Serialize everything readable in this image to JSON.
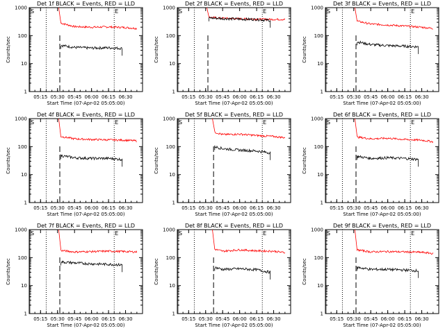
{
  "chart_data": [
    {
      "type": "line",
      "title": "Det 1f BLACK = Events, RED = LLD",
      "xlabel": "Start Time (07-Apr-02 05:05:00)",
      "ylabel": "Counts/sec",
      "yscale": "log",
      "ylim": [
        1,
        1000
      ],
      "xlim": [
        "05:05",
        "06:45"
      ],
      "x_ticks": [
        "05:15",
        "05:30",
        "05:45",
        "06:00",
        "06:15",
        "06:30"
      ],
      "y_ticks": [
        "1",
        "10",
        "100",
        "1000"
      ],
      "grid": false,
      "markers": [
        "S",
        "E"
      ],
      "series": [
        {
          "color": "#ff0000",
          "x": [
            "05:33",
            "05:45",
            "06:00",
            "06:15",
            "06:30",
            "06:40"
          ],
          "values": [
            280,
            210,
            200,
            205,
            195,
            180
          ]
        },
        {
          "color": "#000000",
          "x": [
            "05:33",
            "05:45",
            "06:00",
            "06:15",
            "06:27"
          ],
          "values": [
            45,
            38,
            36,
            37,
            35
          ]
        }
      ]
    },
    {
      "type": "line",
      "title": "Det 2f BLACK = Events, RED = LLD",
      "xlabel": "Start Time (07-Apr-02 05:05:00)",
      "ylabel": "Counts/sec",
      "yscale": "log",
      "ylim": [
        1,
        1000
      ],
      "xlim": [
        "05:05",
        "06:45"
      ],
      "x_ticks": [
        "05:15",
        "05:30",
        "05:45",
        "06:00",
        "06:15",
        "06:30"
      ],
      "y_ticks": [
        "1",
        "10",
        "100",
        "1000"
      ],
      "grid": false,
      "markers": [
        "S",
        "E"
      ],
      "series": [
        {
          "color": "#ff0000",
          "x": [
            "05:33",
            "05:45",
            "06:00",
            "06:15",
            "06:30",
            "06:40"
          ],
          "values": [
            450,
            420,
            400,
            390,
            380,
            380
          ]
        },
        {
          "color": "#000000",
          "x": [
            "05:33",
            "05:45",
            "06:00",
            "06:15",
            "06:27"
          ],
          "values": [
            430,
            410,
            390,
            380,
            350
          ]
        }
      ]
    },
    {
      "type": "line",
      "title": "Det 3f BLACK = Events, RED = LLD",
      "xlabel": "Start Time (07-Apr-02 05:05:00)",
      "ylabel": "Counts/sec",
      "yscale": "log",
      "ylim": [
        1,
        1000
      ],
      "xlim": [
        "05:05",
        "06:45"
      ],
      "x_ticks": [
        "05:15",
        "05:30",
        "05:45",
        "06:00",
        "06:15",
        "06:30"
      ],
      "y_ticks": [
        "1",
        "10",
        "100",
        "1000"
      ],
      "grid": false,
      "markers": [
        "S",
        "E"
      ],
      "series": [
        {
          "color": "#ff0000",
          "x": [
            "05:33",
            "05:45",
            "06:00",
            "06:15",
            "06:30",
            "06:40"
          ],
          "values": [
            330,
            260,
            240,
            220,
            200,
            180
          ]
        },
        {
          "color": "#000000",
          "x": [
            "05:33",
            "05:45",
            "06:00",
            "06:15",
            "06:27"
          ],
          "values": [
            60,
            48,
            44,
            42,
            40
          ]
        }
      ]
    },
    {
      "type": "line",
      "title": "Det 4f BLACK = Events, RED = LLD",
      "xlabel": "Start Time (07-Apr-02 05:05:00)",
      "ylabel": "Counts/sec",
      "yscale": "log",
      "ylim": [
        1,
        1000
      ],
      "xlim": [
        "05:05",
        "06:45"
      ],
      "x_ticks": [
        "05:15",
        "05:30",
        "05:45",
        "06:00",
        "06:15",
        "06:30"
      ],
      "y_ticks": [
        "1",
        "10",
        "100",
        "1000"
      ],
      "grid": false,
      "markers": [
        "S",
        "E"
      ],
      "series": [
        {
          "color": "#ff0000",
          "x": [
            "05:33",
            "05:45",
            "06:00",
            "06:15",
            "06:30",
            "06:40"
          ],
          "values": [
            230,
            190,
            180,
            175,
            170,
            160
          ]
        },
        {
          "color": "#000000",
          "x": [
            "05:33",
            "05:45",
            "06:00",
            "06:15",
            "06:27"
          ],
          "values": [
            48,
            40,
            38,
            38,
            35
          ]
        }
      ]
    },
    {
      "type": "line",
      "title": "Det 5f BLACK = Events, RED = LLD",
      "xlabel": "Start Time (07-Apr-02 05:05:00)",
      "ylabel": "Counts/sec",
      "yscale": "log",
      "ylim": [
        1,
        1000
      ],
      "xlim": [
        "05:05",
        "06:45"
      ],
      "x_ticks": [
        "05:15",
        "05:30",
        "05:45",
        "06:00",
        "06:15",
        "06:30"
      ],
      "y_ticks": [
        "1",
        "10",
        "100",
        "1000"
      ],
      "grid": false,
      "markers": [
        "S",
        "E"
      ],
      "series": [
        {
          "color": "#ff0000",
          "x": [
            "05:38",
            "05:45",
            "06:00",
            "06:15",
            "06:30",
            "06:40"
          ],
          "values": [
            330,
            270,
            280,
            250,
            230,
            210
          ]
        },
        {
          "color": "#000000",
          "x": [
            "05:38",
            "05:45",
            "06:00",
            "06:15",
            "06:27"
          ],
          "values": [
            100,
            85,
            75,
            70,
            60
          ]
        }
      ]
    },
    {
      "type": "line",
      "title": "Det 6f BLACK = Events, RED = LLD",
      "xlabel": "Start Time (07-Apr-02 05:05:00)",
      "ylabel": "Counts/sec",
      "yscale": "log",
      "ylim": [
        1,
        1000
      ],
      "xlim": [
        "05:05",
        "06:45"
      ],
      "x_ticks": [
        "05:15",
        "05:30",
        "05:45",
        "06:00",
        "06:15",
        "06:30"
      ],
      "y_ticks": [
        "1",
        "10",
        "100",
        "1000"
      ],
      "grid": false,
      "markers": [
        "S",
        "E"
      ],
      "series": [
        {
          "color": "#ff0000",
          "x": [
            "05:33",
            "05:45",
            "06:00",
            "06:15",
            "06:30",
            "06:40"
          ],
          "values": [
            220,
            190,
            200,
            180,
            170,
            150
          ]
        },
        {
          "color": "#000000",
          "x": [
            "05:33",
            "05:45",
            "06:00",
            "06:15",
            "06:27"
          ],
          "values": [
            45,
            38,
            40,
            38,
            35
          ]
        }
      ]
    },
    {
      "type": "line",
      "title": "Det 7f BLACK = Events, RED = LLD",
      "xlabel": "Start Time (07-Apr-02 05:05:00)",
      "ylabel": "Counts/sec",
      "yscale": "log",
      "ylim": [
        1,
        1000
      ],
      "xlim": [
        "05:05",
        "06:45"
      ],
      "x_ticks": [
        "05:15",
        "05:30",
        "05:45",
        "06:00",
        "06:15",
        "06:30"
      ],
      "y_ticks": [
        "1",
        "10",
        "100",
        "1000"
      ],
      "grid": false,
      "markers": [
        "S",
        "E"
      ],
      "series": [
        {
          "color": "#ff0000",
          "x": [
            "05:33",
            "05:45",
            "06:00",
            "06:15",
            "06:30",
            "06:40"
          ],
          "values": [
            180,
            160,
            165,
            170,
            165,
            160
          ]
        },
        {
          "color": "#000000",
          "x": [
            "05:33",
            "05:45",
            "06:00",
            "06:15",
            "06:27"
          ],
          "values": [
            70,
            65,
            60,
            58,
            55
          ]
        }
      ]
    },
    {
      "type": "line",
      "title": "Det 8f BLACK = Events, RED = LLD",
      "xlabel": "Start Time (07-Apr-02 05:05:00)",
      "ylabel": "Counts/sec",
      "yscale": "log",
      "ylim": [
        1,
        1000
      ],
      "xlim": [
        "05:05",
        "06:45"
      ],
      "x_ticks": [
        "05:15",
        "05:30",
        "05:45",
        "06:00",
        "06:15",
        "06:30"
      ],
      "y_ticks": [
        "1",
        "10",
        "100",
        "1000"
      ],
      "grid": false,
      "markers": [
        "S",
        "E"
      ],
      "series": [
        {
          "color": "#ff0000",
          "x": [
            "05:38",
            "05:45",
            "06:00",
            "06:15",
            "06:30",
            "06:40"
          ],
          "values": [
            200,
            170,
            190,
            175,
            170,
            150
          ]
        },
        {
          "color": "#000000",
          "x": [
            "05:38",
            "05:45",
            "06:00",
            "06:15",
            "06:27"
          ],
          "values": [
            45,
            38,
            40,
            37,
            30
          ]
        }
      ]
    },
    {
      "type": "line",
      "title": "Det 9f BLACK = Events, RED = LLD",
      "xlabel": "Start Time (07-Apr-02 05:05:00)",
      "ylabel": "Counts/sec",
      "yscale": "log",
      "ylim": [
        1,
        1000
      ],
      "xlim": [
        "05:05",
        "06:45"
      ],
      "x_ticks": [
        "05:15",
        "05:30",
        "05:45",
        "06:00",
        "06:15",
        "06:30"
      ],
      "y_ticks": [
        "1",
        "10",
        "100",
        "1000"
      ],
      "grid": false,
      "markers": [
        "S",
        "E"
      ],
      "series": [
        {
          "color": "#ff0000",
          "x": [
            "05:33",
            "05:45",
            "06:00",
            "06:15",
            "06:30",
            "06:40"
          ],
          "values": [
            190,
            160,
            165,
            160,
            155,
            140
          ]
        },
        {
          "color": "#000000",
          "x": [
            "05:33",
            "05:45",
            "06:00",
            "06:15",
            "06:27"
          ],
          "values": [
            45,
            38,
            38,
            36,
            34
          ]
        }
      ]
    }
  ]
}
